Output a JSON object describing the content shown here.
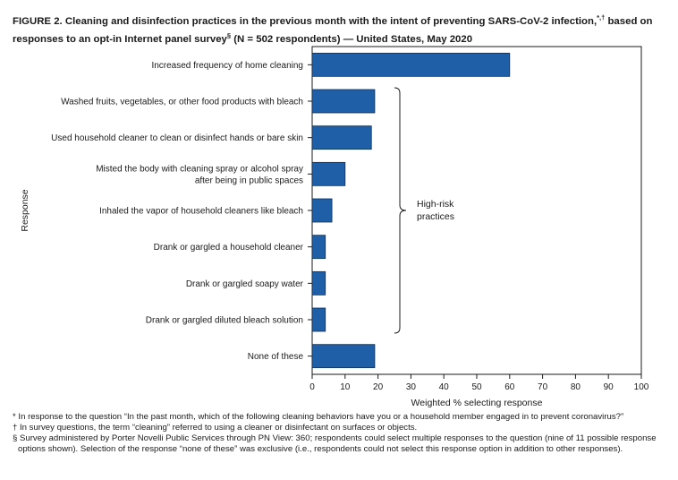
{
  "header": {
    "title_main": "FIGURE 2. Cleaning and disinfection practices in the previous month with the intent of preventing SARS-CoV-2 infection,",
    "title_marks": "*,†",
    "title_cont": " based on responses to an opt-in Internet panel survey",
    "title_mark2": "§",
    "title_end": " (N = 502 respondents) — United States, May 2020"
  },
  "chart_data": {
    "type": "bar",
    "orientation": "horizontal",
    "categories": [
      [
        "Increased frequency of home cleaning"
      ],
      [
        "Washed fruits, vegetables, or other food products with bleach"
      ],
      [
        "Used household cleaner to clean or disinfect hands or bare skin"
      ],
      [
        "Misted the body with cleaning spray or alcohol spray",
        "after being in public spaces"
      ],
      [
        "Inhaled the vapor of household cleaners like bleach"
      ],
      [
        "Drank or gargled a household cleaner"
      ],
      [
        "Drank or gargled soapy water"
      ],
      [
        "Drank or gargled diluted bleach solution"
      ],
      [
        "None of these"
      ]
    ],
    "values": [
      60,
      19,
      18,
      10,
      6,
      4,
      4,
      4,
      19
    ],
    "xlim": [
      0,
      100
    ],
    "xticks": [
      "0",
      "10",
      "20",
      "30",
      "40",
      "50",
      "60",
      "70",
      "80",
      "90",
      "100"
    ],
    "xlabel": "Weighted % selecting response",
    "ylabel": "Response",
    "bar_color": "#1f5fa8",
    "bracket_label": [
      "High-risk",
      "practices"
    ],
    "bracket_range": [
      1,
      7
    ]
  },
  "footnotes": [
    [
      "* In response to the question “In the past month, which of the following cleaning behaviors have you or a household member engaged in to prevent coronavirus?”"
    ],
    [
      "† In survey questions, the term “cleaning” referred to using a cleaner or disinfectant on surfaces or objects."
    ],
    [
      "§ Survey administered by Porter Novelli Public Services through PN View: 360; respondents could select multiple responses to the question (nine of 11 possible response",
      "options shown). Selection of the response “none of these” was exclusive (i.e., respondents could not select this response option in addition to other responses)."
    ]
  ]
}
